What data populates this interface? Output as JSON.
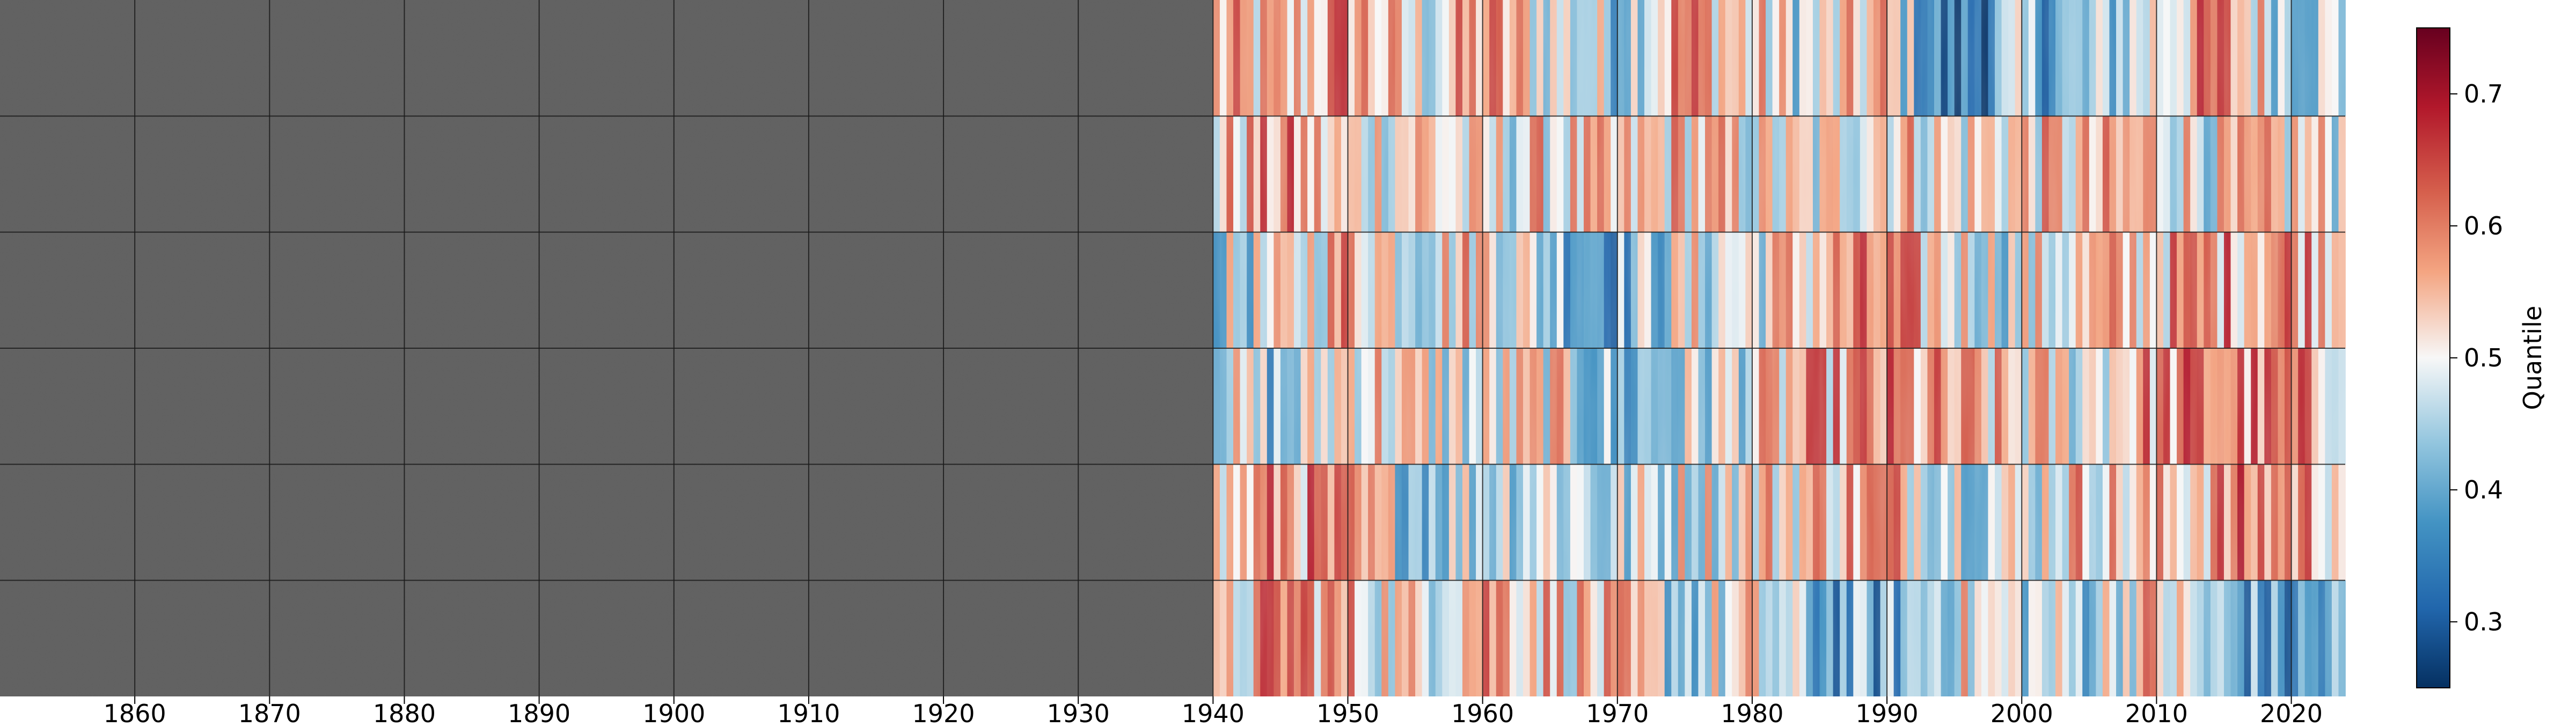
{
  "chart_data": {
    "type": "heatmap",
    "title": "",
    "xlabel": "",
    "ylabel": "",
    "colorbar_label": "Quantile",
    "colormap": "RdBu_r",
    "missing_color": "#5f5f5f",
    "grid": true,
    "grid_color": "#1a1a1a",
    "x_ticks": [
      1860,
      1870,
      1880,
      1890,
      1900,
      1910,
      1920,
      1930,
      1940,
      1950,
      1960,
      1970,
      1980,
      1990,
      2000,
      2010,
      2020
    ],
    "xlim": [
      1850,
      2024
    ],
    "data_start_year": 1940,
    "rows": 6,
    "colorbar_ticks": [
      "0.3",
      "0.4",
      "0.5",
      "0.6",
      "0.7"
    ],
    "clim": [
      0.25,
      0.75
    ],
    "row_profiles": [
      [
        0.55,
        0.52,
        0.6,
        0.48,
        0.58,
        0.5,
        0.45,
        0.6,
        0.52,
        0.47,
        0.55,
        0.3,
        0.42,
        0.4,
        0.5,
        0.6,
        0.48,
        0.45
      ],
      [
        0.52,
        0.58,
        0.5,
        0.55,
        0.48,
        0.53,
        0.5,
        0.55,
        0.5,
        0.48,
        0.56,
        0.5,
        0.54,
        0.52,
        0.55,
        0.5,
        0.52,
        0.5
      ],
      [
        0.45,
        0.48,
        0.58,
        0.5,
        0.55,
        0.45,
        0.4,
        0.48,
        0.5,
        0.55,
        0.58,
        0.52,
        0.48,
        0.52,
        0.55,
        0.58,
        0.6,
        0.58
      ],
      [
        0.5,
        0.42,
        0.55,
        0.5,
        0.48,
        0.52,
        0.4,
        0.45,
        0.5,
        0.56,
        0.58,
        0.55,
        0.52,
        0.5,
        0.58,
        0.6,
        0.58,
        0.55
      ],
      [
        0.5,
        0.6,
        0.55,
        0.45,
        0.48,
        0.5,
        0.45,
        0.5,
        0.52,
        0.55,
        0.58,
        0.5,
        0.48,
        0.55,
        0.52,
        0.58,
        0.6,
        0.55
      ],
      [
        0.45,
        0.62,
        0.55,
        0.5,
        0.6,
        0.55,
        0.52,
        0.45,
        0.5,
        0.4,
        0.38,
        0.5,
        0.48,
        0.45,
        0.55,
        0.42,
        0.35,
        0.4
      ]
    ]
  }
}
